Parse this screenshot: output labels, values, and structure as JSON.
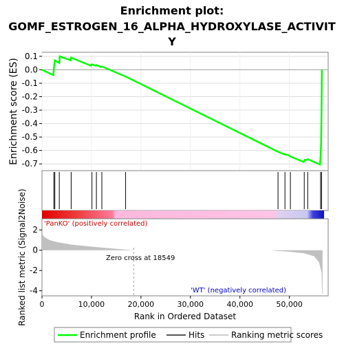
{
  "title_line1": "Enrichment plot:",
  "title_line2": "GOMF_ESTROGEN_16_ALPHA_HYDROXYLASE_ACTIVIT",
  "title_line3": "Y",
  "colors": {
    "es_line": "#00ff00",
    "hits": "#000000",
    "ranked_fill": "#c0c0c0",
    "pos_label": "#cc0000",
    "neg_label": "#0000cc",
    "zero_line": "#a0a0a0"
  },
  "chart_data": [
    {
      "type": "line",
      "name": "enrichment-score",
      "ylabel": "Enrichment score (ES)",
      "ylim": [
        -0.75,
        0.13
      ],
      "xlim": [
        0,
        57000
      ],
      "yticks": [
        "0.1",
        "0.0",
        "-0.1",
        "-0.2",
        "-0.3",
        "-0.4",
        "-0.5",
        "-0.6",
        "-0.7"
      ],
      "ytick_values": [
        0.1,
        0.0,
        -0.1,
        -0.2,
        -0.3,
        -0.4,
        -0.5,
        -0.6,
        -0.7
      ],
      "grid": true,
      "points": [
        [
          0,
          0.0
        ],
        [
          2300,
          -0.04
        ],
        [
          2400,
          0.01
        ],
        [
          2600,
          0.07
        ],
        [
          3500,
          0.05
        ],
        [
          3600,
          0.1
        ],
        [
          5800,
          0.07
        ],
        [
          5900,
          0.09
        ],
        [
          9900,
          0.03
        ],
        [
          10100,
          0.04
        ],
        [
          10900,
          0.03
        ],
        [
          11000,
          0.035
        ],
        [
          12000,
          0.02
        ],
        [
          12100,
          0.025
        ],
        [
          16900,
          -0.05
        ],
        [
          47700,
          -0.61
        ],
        [
          49100,
          -0.63
        ],
        [
          49800,
          -0.635
        ],
        [
          50200,
          -0.645
        ],
        [
          52900,
          -0.685
        ],
        [
          53100,
          -0.67
        ],
        [
          53600,
          -0.67
        ],
        [
          53700,
          -0.665
        ],
        [
          56200,
          -0.705
        ],
        [
          56300,
          -0.64
        ],
        [
          56400,
          -0.55
        ],
        [
          56450,
          -0.45
        ],
        [
          56500,
          -0.28
        ],
        [
          56550,
          0.0
        ]
      ]
    },
    {
      "type": "hits",
      "name": "hits",
      "positions": [
        2400,
        2600,
        3500,
        5900,
        10100,
        11000,
        12100,
        16900,
        47700,
        49100,
        50200,
        53000,
        53700,
        56300,
        56500
      ]
    },
    {
      "type": "area",
      "name": "ranked-list-metric",
      "ylabel": "Ranked list metric (Signal2Noise)",
      "xlabel": "Rank in Ordered Dataset",
      "xlim": [
        0,
        57000
      ],
      "ylim": [
        -4.5,
        3.1
      ],
      "xticks": [
        "0",
        "10,000",
        "20,000",
        "30,000",
        "40,000",
        "50,000"
      ],
      "xtick_values": [
        0,
        10000,
        20000,
        30000,
        40000,
        50000
      ],
      "yticks": [
        "2",
        "0",
        "-2",
        "-4"
      ],
      "ytick_values": [
        2,
        0,
        -2,
        -4
      ],
      "points": [
        [
          0,
          1.6
        ],
        [
          500,
          1.3
        ],
        [
          1500,
          1.0
        ],
        [
          3000,
          0.8
        ],
        [
          6000,
          0.55
        ],
        [
          10000,
          0.35
        ],
        [
          14000,
          0.18
        ],
        [
          18549,
          0.0
        ],
        [
          46500,
          0.0
        ],
        [
          47000,
          -0.05
        ],
        [
          50000,
          -0.15
        ],
        [
          53000,
          -0.3
        ],
        [
          55000,
          -0.6
        ],
        [
          56000,
          -1.2
        ],
        [
          56500,
          -2.2
        ],
        [
          56600,
          -4.3
        ],
        [
          56700,
          -4.3
        ]
      ],
      "zero_cross": 18549
    }
  ],
  "labels": {
    "zero_cross": "Zero cross at 18549",
    "positive": "'PanKO' (positively correlated)",
    "negative": "'WT' (negatively correlated)",
    "es_ylabel": "Enrichment score (ES)",
    "rank_ylabel": "Ranked list metric (Signal2Noise)",
    "xlabel": "Rank in Ordered Dataset"
  },
  "legend": [
    {
      "label": "Enrichment profile",
      "symbol": "green-line"
    },
    {
      "label": "Hits",
      "symbol": "black-line"
    },
    {
      "label": "Ranking metric scores",
      "symbol": "gray-line"
    }
  ]
}
